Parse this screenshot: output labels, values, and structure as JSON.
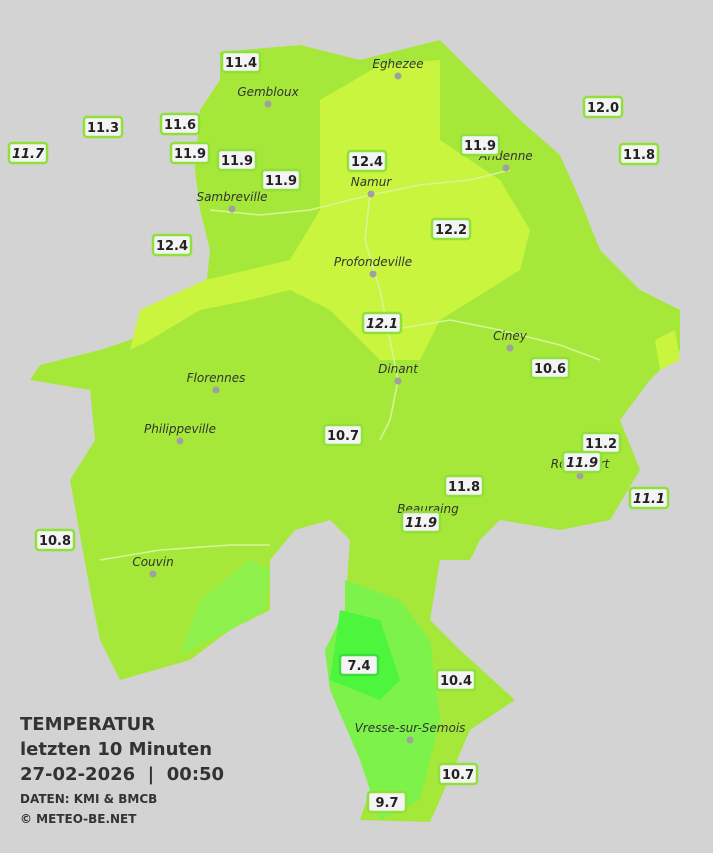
{
  "legend": {
    "title": "TEMPERATUR",
    "subtitle": "letzten 10 Minuten",
    "datetime": "27-02-2026  |  00:50",
    "source": "DATEN: KMI & BMCB",
    "copyright": "© METEO-BE.NET"
  },
  "cities": [
    "Eghezee",
    "Gembloux",
    "Andenne",
    "Namur",
    "Sambreville",
    "Profondeville",
    "Ciney",
    "Dinant",
    "Florennes",
    "Philippeville",
    "Rochefort",
    "Beauraing",
    "Couvin",
    "Vresse-sur-Semois"
  ],
  "stations": [
    {
      "label": "11.4",
      "italic": false,
      "color": "#8fe13a"
    },
    {
      "label": "11.3",
      "italic": false,
      "color": "#8fe13a"
    },
    {
      "label": "11.7",
      "italic": true,
      "color": "#8fe13a"
    },
    {
      "label": "11.6",
      "italic": false,
      "color": "#8fe13a"
    },
    {
      "label": "11.9",
      "italic": false,
      "color": "#8fe13a"
    },
    {
      "label": "11.9",
      "italic": false,
      "color": "#8fe13a"
    },
    {
      "label": "11.9",
      "italic": false,
      "color": "#8fe13a"
    },
    {
      "label": "12.4",
      "italic": false,
      "color": "#8fe13a"
    },
    {
      "label": "11.9",
      "italic": false,
      "color": "#8fe13a"
    },
    {
      "label": "12.0",
      "italic": false,
      "color": "#8fe13a"
    },
    {
      "label": "11.8",
      "italic": false,
      "color": "#8fe13a"
    },
    {
      "label": "12.4",
      "italic": false,
      "color": "#8fe13a"
    },
    {
      "label": "12.2",
      "italic": false,
      "color": "#8fe13a"
    },
    {
      "label": "12.1",
      "italic": true,
      "color": "#8fe13a"
    },
    {
      "label": "10.6",
      "italic": false,
      "color": "#8fe13a"
    },
    {
      "label": "10.7",
      "italic": false,
      "color": "#8fe13a"
    },
    {
      "label": "11.2",
      "italic": false,
      "color": "#8fe13a"
    },
    {
      "label": "11.9",
      "italic": true,
      "color": "#8fe13a"
    },
    {
      "label": "11.8",
      "italic": false,
      "color": "#8fe13a"
    },
    {
      "label": "11.9",
      "italic": true,
      "color": "#8fe13a"
    },
    {
      "label": "11.1",
      "italic": true,
      "color": "#8fe13a"
    },
    {
      "label": "10.8",
      "italic": false,
      "color": "#8fe13a"
    },
    {
      "label": "7.4",
      "italic": false,
      "color": "#3fdc3f"
    },
    {
      "label": "10.4",
      "italic": false,
      "color": "#8fe13a"
    },
    {
      "label": "10.7",
      "italic": false,
      "color": "#8fe13a"
    },
    {
      "label": "9.7",
      "italic": false,
      "color": "#8fe13a"
    }
  ]
}
